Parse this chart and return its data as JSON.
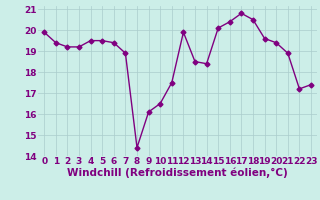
{
  "hours": [
    0,
    1,
    2,
    3,
    4,
    5,
    6,
    7,
    8,
    9,
    10,
    11,
    12,
    13,
    14,
    15,
    16,
    17,
    18,
    19,
    20,
    21,
    22,
    23
  ],
  "values": [
    19.9,
    19.4,
    19.2,
    19.2,
    19.5,
    19.5,
    19.4,
    18.9,
    14.4,
    16.1,
    16.5,
    17.5,
    19.9,
    18.5,
    18.4,
    20.1,
    20.4,
    20.8,
    20.5,
    19.6,
    19.4,
    18.9,
    17.2,
    17.4
  ],
  "line_color": "#800080",
  "bg_color": "#cceee8",
  "grid_color": "#aacccc",
  "xlabel": "Windchill (Refroidissement éolien,°C)",
  "ylim": [
    14,
    21
  ],
  "xlim_min": -0.5,
  "xlim_max": 23.5,
  "yticks": [
    14,
    15,
    16,
    17,
    18,
    19,
    20,
    21
  ],
  "xticks": [
    0,
    1,
    2,
    3,
    4,
    5,
    6,
    7,
    8,
    9,
    10,
    11,
    12,
    13,
    14,
    15,
    16,
    17,
    18,
    19,
    20,
    21,
    22,
    23
  ],
  "marker": "D",
  "marker_size": 2.5,
  "line_width": 1.0,
  "xlabel_fontsize": 7.5,
  "tick_fontsize": 6.5,
  "label_color": "#800080"
}
